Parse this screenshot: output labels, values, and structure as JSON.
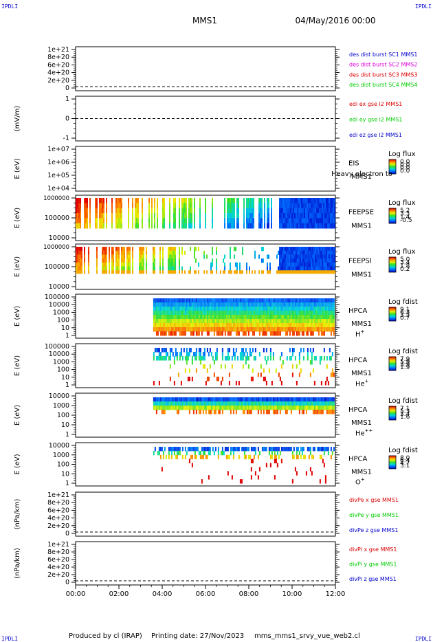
{
  "header": {
    "corner_tl": "IPDLI",
    "corner_tr": "IPDLI",
    "corner_bl": "IPDLI",
    "corner_br": "IPDLI",
    "spacecraft": "MMS1",
    "date": "04/May/2016 00:00"
  },
  "footer": {
    "produced_by": "Produced by cl (IRAP)",
    "printing_date": "Printing date: 27/Nov/2023",
    "filename": "mms_mms1_srvy_vue_web2.cl"
  },
  "colors": {
    "red": "#dd0000",
    "magenta": "#dd00dd",
    "green": "#00cc00",
    "blue": "#0000cc"
  },
  "chart_data": {
    "type": "heatmap",
    "x": {
      "start": "00:00",
      "end": "12:00",
      "ticks": [
        "00:00",
        "02:00",
        "04:00",
        "06:00",
        "08:00",
        "10:00",
        "12:00"
      ]
    },
    "panels": [
      {
        "id": "des-dist",
        "kind": "line",
        "ylabel": "",
        "yticks": [
          "1e+21",
          "8e+20",
          "6e+20",
          "4e+20",
          "2e+20",
          "0"
        ],
        "dashed_zero": true,
        "legend": [
          {
            "text": "des dist burst SC1 MMS1",
            "color": "#0000cc"
          },
          {
            "text": "des dist burst SC2 MMS2",
            "color": "#dd00dd"
          },
          {
            "text": "des dist burst SC3 MMS3",
            "color": "#dd0000"
          },
          {
            "text": "des dist burst SC4 MMS4",
            "color": "#00cc00"
          }
        ]
      },
      {
        "id": "edi",
        "kind": "line",
        "ylabel": "(mV/m)",
        "yticks": [
          "1",
          "0",
          "-1"
        ],
        "dashed_zero": true,
        "legend": [
          {
            "text": "edi ex gse l2 MMS1",
            "color": "#dd0000"
          },
          {
            "text": "edi ey gse l2 MMS1",
            "color": "#00cc00"
          },
          {
            "text": "edi ez gse l2 MMS1",
            "color": "#0000cc"
          }
        ]
      },
      {
        "id": "eis",
        "kind": "spectrogram",
        "ylabel": "E (eV)",
        "yticks": [
          "1e+07",
          "1e+06",
          "1e+05",
          "1e+04"
        ],
        "labels": [
          "EIS",
          "MMS1"
        ],
        "overlay": "Heavy electron to",
        "colorbar_title": "Log flux",
        "colorbar_values": [
          "0.0",
          "0.0",
          "0.0",
          "0.0"
        ],
        "data_start": null,
        "data_end": null
      },
      {
        "id": "feepse",
        "kind": "spectrogram",
        "ylabel": "E (eV)",
        "yticks": [
          "1000000",
          "100000",
          "10000"
        ],
        "labels": [
          "FEEPSE",
          "MMS1"
        ],
        "colorbar_title": "Log flux",
        "colorbar_values": [
          "5.2",
          "3.3",
          "1.4",
          "-0.5"
        ],
        "data_start": "00:00",
        "data_end": "12:00"
      },
      {
        "id": "feepsi",
        "kind": "spectrogram",
        "ylabel": "E (eV)",
        "yticks": [
          "1000000",
          "100000",
          "10000"
        ],
        "labels": [
          "FEEPSI",
          "MMS1"
        ],
        "colorbar_title": "Log flux",
        "colorbar_values": [
          "5.0",
          "3.4",
          "1.8",
          "0.2"
        ],
        "data_start": "00:00",
        "data_end": "12:00"
      },
      {
        "id": "hpca-h",
        "kind": "spectrogram",
        "ylabel": "E (eV)",
        "yticks": [
          "100000",
          "10000",
          "1000",
          "100",
          "10",
          "1"
        ],
        "labels": [
          "HPCA",
          "MMS1"
        ],
        "species": "H",
        "species_sup": "+",
        "colorbar_title": "Log fdist",
        "colorbar_values": [
          "9.1",
          "6.3",
          "3.5",
          "0.7"
        ],
        "data_start": "03:35",
        "data_end": "12:00"
      },
      {
        "id": "hpca-he",
        "kind": "spectrogram",
        "ylabel": "E (eV)",
        "yticks": [
          "100000",
          "10000",
          "1000",
          "100",
          "10",
          "1"
        ],
        "labels": [
          "HPCA",
          "MMS1"
        ],
        "species": "He",
        "species_sup": "+",
        "colorbar_title": "Log fdist",
        "colorbar_values": [
          "7.9",
          "5.9",
          "3.9",
          "1.9"
        ],
        "data_start": "03:35",
        "data_end": "12:00"
      },
      {
        "id": "hpca-hepp",
        "kind": "spectrogram",
        "ylabel": "E (eV)",
        "yticks": [
          "10000",
          "1000",
          "100",
          "10",
          "1"
        ],
        "labels": [
          "HPCA",
          "MMS1"
        ],
        "species": "He",
        "species_sup": "++",
        "colorbar_title": "Log fdist",
        "colorbar_values": [
          "7.1",
          "5.3",
          "3.4",
          "1.6"
        ],
        "data_start": "03:35",
        "data_end": "12:00"
      },
      {
        "id": "hpca-o",
        "kind": "spectrogram",
        "ylabel": "E (eV)",
        "yticks": [
          "10000",
          "1000",
          "100",
          "10",
          "1"
        ],
        "labels": [
          "HPCA",
          "MMS1"
        ],
        "species": "O",
        "species_sup": "+",
        "colorbar_title": "Log fdist",
        "colorbar_values": [
          "8.0",
          "6.4",
          "4.7",
          "3.1"
        ],
        "data_start": "03:35",
        "data_end": "12:00"
      },
      {
        "id": "divpe",
        "kind": "line",
        "ylabel": "(nPa/km)",
        "yticks": [
          "1e+21",
          "8e+20",
          "6e+20",
          "4e+20",
          "2e+20",
          "0"
        ],
        "dashed_zero": true,
        "legend": [
          {
            "text": "divPe x gse MMS1",
            "color": "#dd0000"
          },
          {
            "text": "divPe y gse MMS1",
            "color": "#00cc00"
          },
          {
            "text": "divPe z gse MMS1",
            "color": "#0000cc"
          }
        ]
      },
      {
        "id": "divpi",
        "kind": "line",
        "ylabel": "(nPa/km)",
        "yticks": [
          "1e+21",
          "8e+20",
          "6e+20",
          "4e+20",
          "2e+20",
          "0"
        ],
        "dashed_zero": true,
        "legend": [
          {
            "text": "divPi x gse MMS1",
            "color": "#dd0000"
          },
          {
            "text": "divPi y gse MMS1",
            "color": "#00cc00"
          },
          {
            "text": "divPi z gse MMS1",
            "color": "#0000cc"
          }
        ]
      }
    ]
  }
}
